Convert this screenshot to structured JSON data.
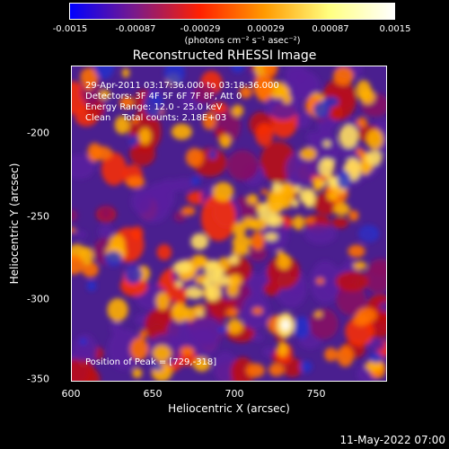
{
  "colorbar": {
    "ticks": [
      "-0.0015",
      "-0.00087",
      "-0.00029",
      "0.00029",
      "0.00087",
      "0.0015"
    ],
    "unit": "(photons cm⁻² s⁻¹ asec⁻²)",
    "colors": [
      "#0000ff",
      "#7a1a8a",
      "#ff2000",
      "#ff9a00",
      "#ffff80",
      "#ffffff"
    ]
  },
  "title": "Reconstructed RHESSI Image",
  "info": {
    "time_range": "29-Apr-2011 03:17:36.000 to 03:18:36.000",
    "detectors": "Detectors: 3F 4F 5F 6F 7F 8F, Att 0",
    "energy": "Energy Range: 12.0 - 25.0 keV",
    "method": "Clean    Total counts: 2.18E+03",
    "peak": "Position of Peak = [729,-318]"
  },
  "axes": {
    "xlabel": "Heliocentric X (arcsec)",
    "ylabel": "Heliocentric Y (arcsec)",
    "xticks": [
      "600",
      "650",
      "700",
      "750"
    ],
    "yticks": [
      "-200",
      "-250",
      "-300",
      "-350"
    ],
    "xlim": [
      600,
      790
    ],
    "ylim": [
      -352,
      -162
    ]
  },
  "datestamp": "11-May-2022 07:00",
  "chart_data": {
    "type": "heatmap",
    "title": "Reconstructed RHESSI Image",
    "xlabel": "Heliocentric X (arcsec)",
    "ylabel": "Heliocentric Y (arcsec)",
    "xlim": [
      600,
      790
    ],
    "ylim": [
      -352,
      -162
    ],
    "zlim": [
      -0.0015,
      0.0015
    ],
    "peak": [
      729,
      -318
    ],
    "grid": false
  }
}
